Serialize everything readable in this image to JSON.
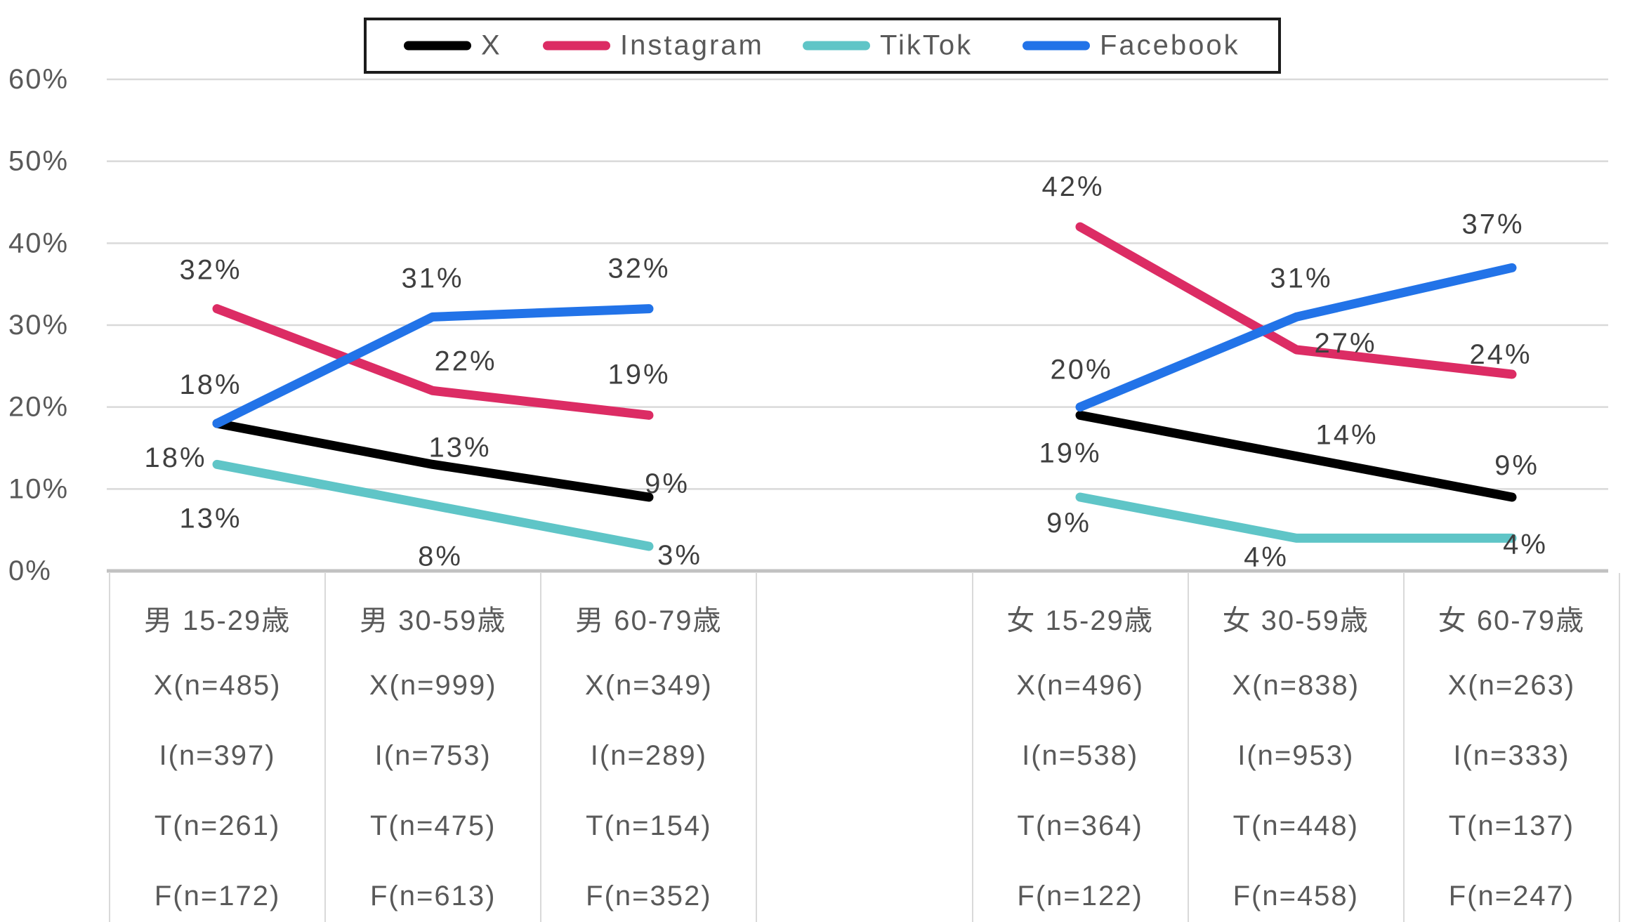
{
  "chart_data": {
    "type": "line",
    "title": "",
    "y_axis": {
      "min": 0,
      "max": 60,
      "step": 10,
      "tick_labels": [
        "0%",
        "10%",
        "20%",
        "30%",
        "40%",
        "50%",
        "60%"
      ],
      "grid": true
    },
    "groups": [
      {
        "key": "male",
        "categories": [
          "男 15-29歳",
          "男 30-59歳",
          "男 60-79歳"
        ]
      },
      {
        "key": "female",
        "categories": [
          "女 15-29歳",
          "女 30-59歳",
          "女 60-79歳"
        ]
      }
    ],
    "series": [
      {
        "name": "X",
        "color": "#000000",
        "values": {
          "male": [
            18,
            13,
            9
          ],
          "female": [
            19,
            14,
            9
          ]
        }
      },
      {
        "name": "Instagram",
        "color": "#dc2c64",
        "values": {
          "male": [
            32,
            22,
            19
          ],
          "female": [
            42,
            27,
            24
          ]
        }
      },
      {
        "name": "TikTok",
        "color": "#5fc5c7",
        "values": {
          "male": [
            13,
            8,
            3
          ],
          "female": [
            9,
            4,
            4
          ]
        }
      },
      {
        "name": "Facebook",
        "color": "#2273e8",
        "values": {
          "male": [
            18,
            31,
            32
          ],
          "female": [
            20,
            31,
            37
          ]
        }
      }
    ],
    "data_label_suffix": "%",
    "legend_position": "top"
  },
  "colors": {
    "gridline": "#d9d9d9",
    "axis_line": "#c2c2c2",
    "axis_text": "#595959",
    "data_label_text": "#3f3f3f",
    "table_text": "#595959",
    "table_border": "#d9d9d9",
    "legend_border": "#1c1c1c"
  },
  "table": {
    "columns": [
      {
        "header": "男 15-29歳",
        "cells": [
          "X(n=485)",
          "I(n=397)",
          "T(n=261)",
          "F(n=172)"
        ]
      },
      {
        "header": "男 30-59歳",
        "cells": [
          "X(n=999)",
          "I(n=753)",
          "T(n=475)",
          "F(n=613)"
        ]
      },
      {
        "header": "男 60-79歳",
        "cells": [
          "X(n=349)",
          "I(n=289)",
          "T(n=154)",
          "F(n=352)"
        ]
      },
      {
        "header": "",
        "cells": [
          "",
          "",
          "",
          ""
        ]
      },
      {
        "header": "女 15-29歳",
        "cells": [
          "X(n=496)",
          "I(n=538)",
          "T(n=364)",
          "F(n=122)"
        ]
      },
      {
        "header": "女 30-59歳",
        "cells": [
          "X(n=838)",
          "I(n=953)",
          "T(n=448)",
          "F(n=458)"
        ]
      },
      {
        "header": "女 60-79歳",
        "cells": [
          "X(n=263)",
          "I(n=333)",
          "T(n=137)",
          "F(n=247)"
        ]
      }
    ]
  }
}
